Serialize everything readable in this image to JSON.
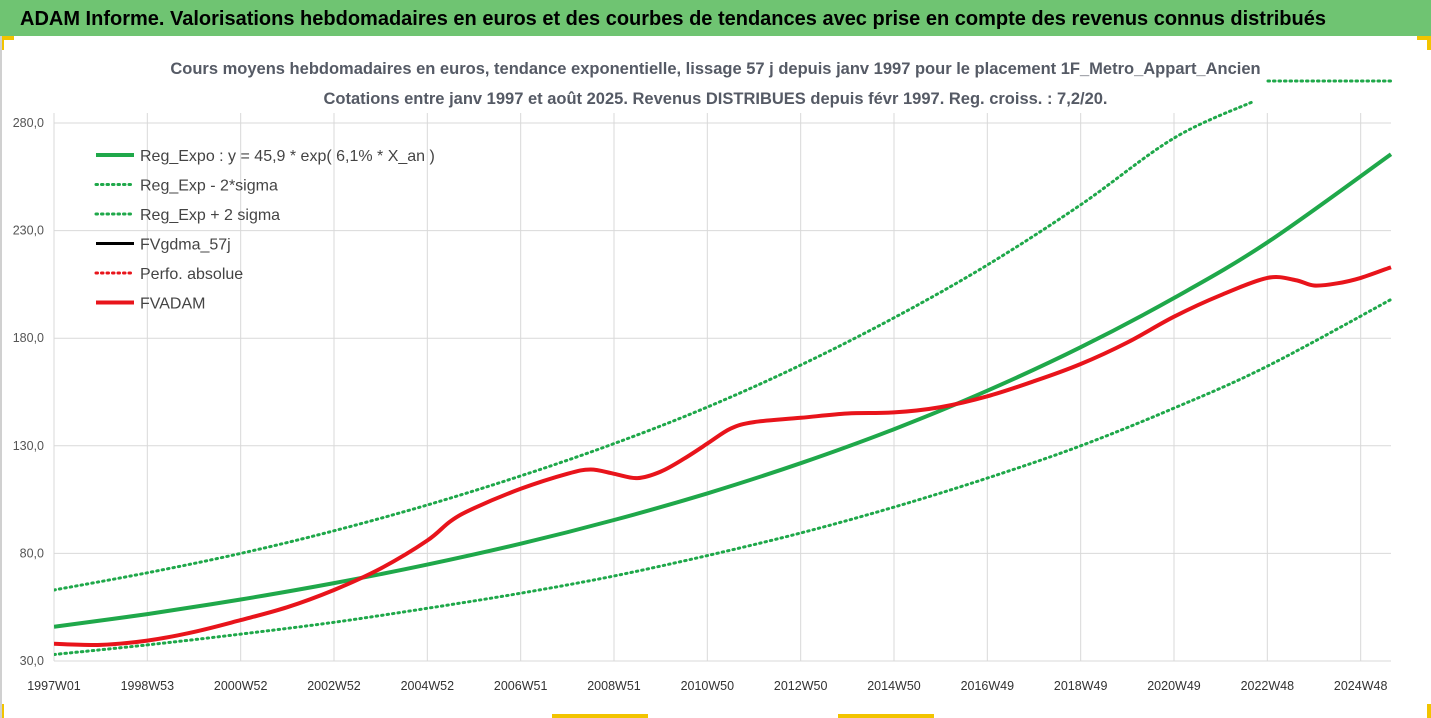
{
  "banner": {
    "title": "ADAM Informe. Valorisations hebdomadaires en euros et des courbes de tendances avec prise en compte des revenus connus distribués"
  },
  "colors": {
    "banner_bg": "#6fc472",
    "reg_expo": "#1fa84a",
    "sigma": "#1fa84a",
    "fvadam": "#e8141b",
    "fvgdma": "#000000",
    "perfo": "#e8141b"
  },
  "chart_data": {
    "type": "line",
    "title": "Cours moyens hebdomadaires en euros, tendance exponentielle, lissage 57 j depuis janv 1997 pour le placement 1F_Metro_Appart_Ancien",
    "subtitle": "Cotations entre janv 1997 et août 2025. Revenus DISTRIBUES depuis févr 1997. Reg. croiss. : 7,2/20.",
    "xlabel": "",
    "ylabel": "",
    "ylim": [
      30,
      290
    ],
    "xlim": [
      1997.0,
      2025.65
    ],
    "grid": true,
    "legend_position": "top-left",
    "y_ticks": [
      "30,0",
      "80,0",
      "130,0",
      "180,0",
      "230,0",
      "280,0"
    ],
    "y_tick_values": [
      30,
      80,
      130,
      180,
      230,
      280
    ],
    "x_ticks": [
      "1997W01",
      "1998W53",
      "2000W52",
      "2002W52",
      "2004W52",
      "2006W51",
      "2008W51",
      "2010W50",
      "2012W50",
      "2014W50",
      "2016W49",
      "2018W49",
      "2020W49",
      "2022W48",
      "2024W48"
    ],
    "x_tick_values": [
      1997.0,
      1999.0,
      2001.0,
      2003.0,
      2005.0,
      2007.0,
      2009.0,
      2011.0,
      2013.0,
      2015.0,
      2017.0,
      2019.0,
      2021.0,
      2023.0,
      2025.0
    ],
    "series": [
      {
        "name": "Reg_Expo : y = 45,9 * exp( 6,1% *  X_an )",
        "style": "solid-thick",
        "color": "#1fa84a",
        "x": [
          1997.0,
          1999.0,
          2001.0,
          2003.0,
          2005.0,
          2007.0,
          2009.0,
          2011.0,
          2013.0,
          2015.0,
          2017.0,
          2019.0,
          2021.0,
          2023.0,
          2025.65
        ],
        "y": [
          45.9,
          51.8,
          58.6,
          66.2,
          74.8,
          84.5,
          95.5,
          107.9,
          121.9,
          137.7,
          155.6,
          175.8,
          198.7,
          224.5,
          265.5
        ]
      },
      {
        "name": "Reg_Exp - 2*sigma",
        "style": "dotted",
        "color": "#1fa84a",
        "x": [
          1997.0,
          1999.0,
          2001.0,
          2003.0,
          2005.0,
          2007.0,
          2009.0,
          2011.0,
          2013.0,
          2015.0,
          2017.0,
          2019.0,
          2021.0,
          2023.0,
          2025.65
        ],
        "y": [
          33.0,
          37.5,
          42.5,
          48.0,
          54.5,
          61.5,
          69.5,
          79.0,
          89.5,
          101.5,
          115.0,
          130.0,
          147.5,
          167.0,
          198.0
        ]
      },
      {
        "name": "Reg_Exp + 2 sigma",
        "style": "dotted",
        "color": "#1fa84a",
        "x": [
          1997.0,
          1999.0,
          2001.0,
          2003.0,
          2005.0,
          2007.0,
          2009.0,
          2011.0,
          2013.0,
          2015.0,
          2017.0,
          2019.0,
          2021.0,
          2022.7
        ],
        "y": [
          63.0,
          71.0,
          80.0,
          90.5,
          102.5,
          116.0,
          131.0,
          148.0,
          167.5,
          189.5,
          214.0,
          242.0,
          273.0,
          290.0
        ]
      },
      {
        "name": "FVgdma_57j",
        "style": "solid",
        "color": "#000000",
        "x": [],
        "y": []
      },
      {
        "name": "Perfo. absolue",
        "style": "dotted",
        "color": "#e8141b",
        "x": [],
        "y": []
      },
      {
        "name": "FVADAM",
        "style": "solid-thick",
        "color": "#e8141b",
        "x": [
          1997.0,
          1998.0,
          1999.0,
          2000.0,
          2001.0,
          2002.0,
          2003.0,
          2004.0,
          2005.0,
          2005.5,
          2006.0,
          2007.0,
          2008.0,
          2008.5,
          2009.0,
          2009.5,
          2010.0,
          2010.5,
          2011.0,
          2011.5,
          2012.0,
          2013.0,
          2014.0,
          2015.0,
          2016.0,
          2017.0,
          2018.0,
          2019.0,
          2020.0,
          2021.0,
          2022.0,
          2023.0,
          2023.6,
          2024.0,
          2024.5,
          2025.0,
          2025.65
        ],
        "y": [
          38.0,
          37.5,
          39.5,
          43.5,
          49.0,
          55.0,
          63.0,
          73.0,
          86.0,
          95.0,
          101.0,
          110.0,
          117.0,
          119.0,
          117.0,
          115.0,
          118.0,
          124.0,
          131.0,
          138.0,
          141.0,
          143.0,
          145.0,
          145.5,
          148.0,
          153.0,
          160.0,
          168.0,
          178.0,
          190.0,
          200.0,
          208.0,
          207.0,
          204.5,
          205.5,
          208.0,
          213.0
        ]
      }
    ]
  }
}
